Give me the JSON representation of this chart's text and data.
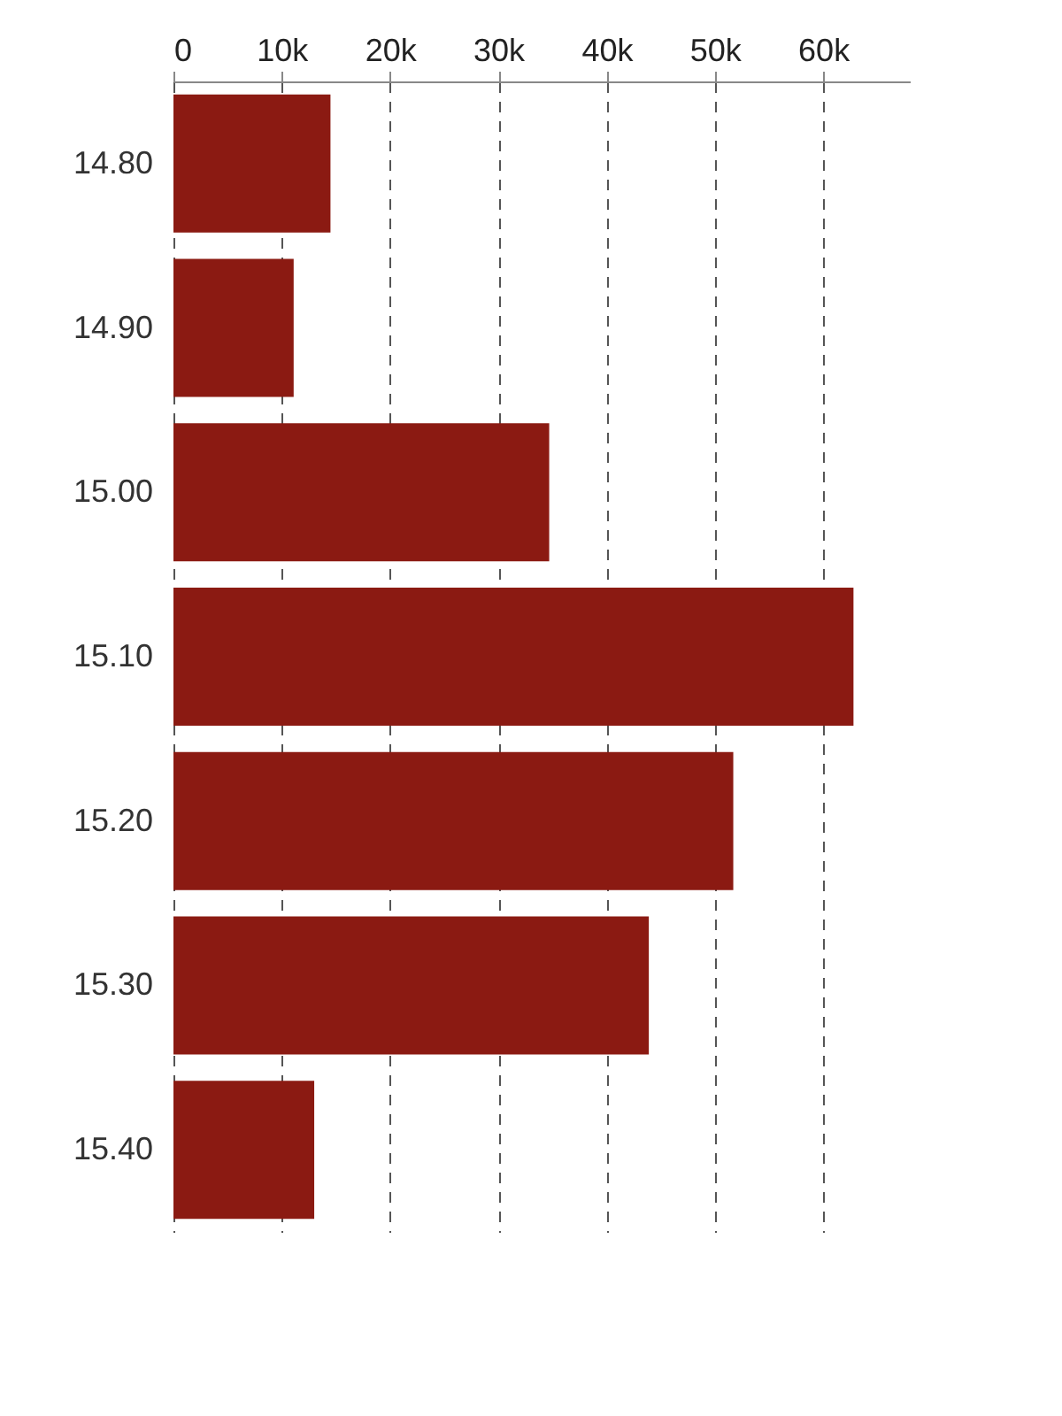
{
  "chart_data": {
    "type": "bar",
    "orientation": "horizontal",
    "categories": [
      "14.80",
      "14.90",
      "15.00",
      "15.10",
      "15.20",
      "15.30",
      "15.40"
    ],
    "values": [
      14500,
      11100,
      34700,
      62800,
      51700,
      43900,
      13000
    ],
    "color": "#8b1a12",
    "xlim": [
      0,
      68000
    ],
    "xticks": [
      0,
      {
        "value": 10000,
        "label": "10k"
      },
      {
        "value": 20000,
        "label": "20k"
      },
      {
        "value": 30000,
        "label": "30k"
      },
      {
        "value": 40000,
        "label": "40k"
      },
      {
        "value": 50000,
        "label": "50k"
      },
      {
        "value": 60000,
        "label": "60k"
      }
    ],
    "grid": "x"
  }
}
